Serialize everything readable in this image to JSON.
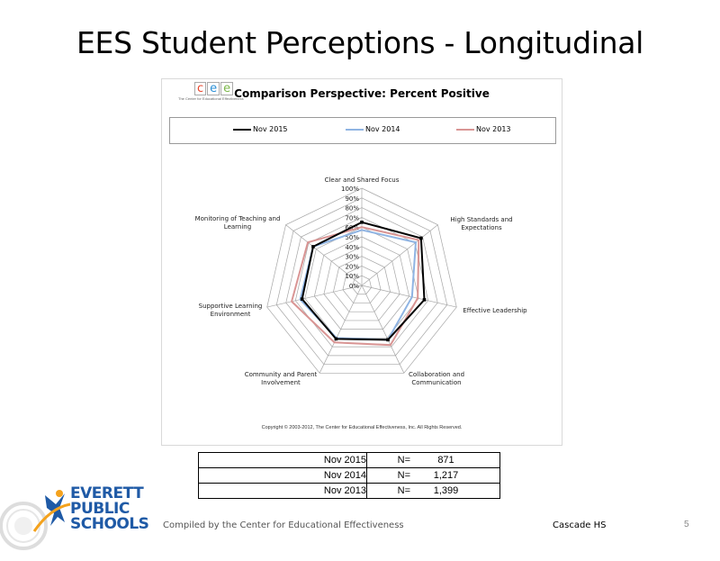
{
  "slide": {
    "title": "EES Student Perceptions - Longitudinal",
    "footer_left": "Compiled by the Center for Educational Effectiveness",
    "school": "Cascade HS",
    "page_number": "5"
  },
  "cee_logo": {
    "letters": [
      "c",
      "e",
      "e"
    ],
    "subtitle": "The Center for Educational Effectiveness",
    "colors": [
      "#e8452c",
      "#2a8fd6",
      "#7ab648"
    ]
  },
  "district_logo": {
    "lines": [
      "EVERETT",
      "PUBLIC",
      "SCHOOLS"
    ],
    "color": "#1f5aa6",
    "accent_color": "#f4a21d"
  },
  "chart_data": {
    "type": "radar",
    "title": "Comparison Perspective: Percent Positive",
    "axes": [
      "Clear and Shared Focus",
      "High Standards and Expectations",
      "Effective Leadership",
      "Collaboration and Communication",
      "Community and Parent Involvement",
      "Supportive Learning Environment",
      "Monitoring of Teaching and Learning"
    ],
    "axis_label_lines": [
      [
        "Clear and Shared Focus"
      ],
      [
        "High Standards and",
        "Expectations"
      ],
      [
        "Effective Leadership"
      ],
      [
        "Collaboration and",
        "Communication"
      ],
      [
        "Community and Parent",
        "Involvement"
      ],
      [
        "Supportive Learning",
        "Environment"
      ],
      [
        "Monitoring of Teaching and",
        "Learning"
      ]
    ],
    "tick_labels": [
      "0%",
      "10%",
      "20%",
      "30%",
      "40%",
      "50%",
      "60%",
      "70%",
      "80%",
      "90%",
      "100%"
    ],
    "rlim": [
      0,
      100
    ],
    "series": [
      {
        "name": "Nov 2015",
        "values": [
          65,
          78,
          66,
          62,
          61,
          63,
          64
        ],
        "color": "#000000"
      },
      {
        "name": "Nov 2014",
        "values": [
          57,
          71,
          53,
          62,
          60,
          65,
          64
        ],
        "color": "#8fb4e3"
      },
      {
        "name": "Nov 2013",
        "values": [
          60,
          75,
          59,
          68,
          65,
          74,
          71
        ],
        "color": "#d99594"
      }
    ],
    "legend_position": "top",
    "grid": true,
    "copyright": "Copyright © 2003-2012, The Center for Educational Effectiveness, Inc. All Rights Reserved."
  },
  "n_table": {
    "rows": [
      {
        "year": "Nov 2015",
        "label": "N=",
        "value": "871"
      },
      {
        "year": "Nov 2014",
        "label": "N=",
        "value": "1,217"
      },
      {
        "year": "Nov 2013",
        "label": "N=",
        "value": "1,399"
      }
    ]
  }
}
